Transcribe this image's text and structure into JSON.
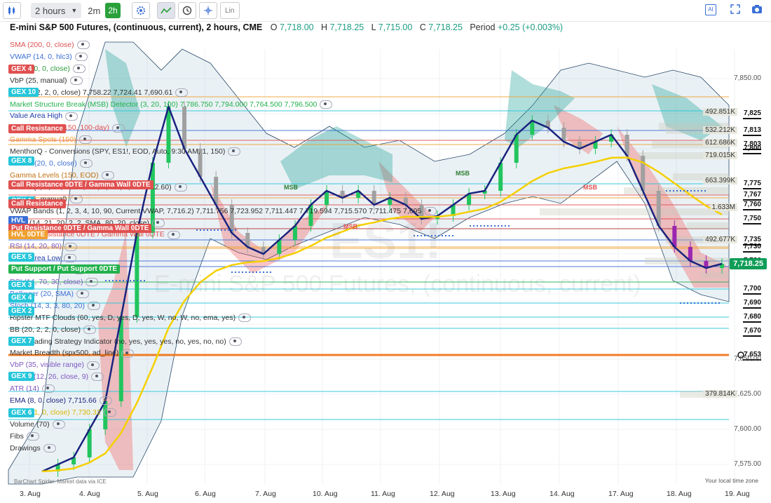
{
  "toolbar": {
    "chart_type_icon": "candlestick-icon",
    "interval_label": "2 hours",
    "quick_intervals": [
      "2m",
      "2h"
    ],
    "tools": [
      "gear-icon",
      "line-chart-icon",
      "clock-icon",
      "crosshair-icon"
    ],
    "log_label": "Lin",
    "right_tools": [
      "ai-icon",
      "fullscreen-icon",
      "camera-icon"
    ]
  },
  "header": {
    "symbol_title": "E-mini S&P 500 Futures, (continuous, current), 2 hours, CME",
    "o_label": "O",
    "o_value": "7,718.00",
    "h_label": "H",
    "h_value": "7,718.25",
    "l_label": "L",
    "l_value": "7,715.00",
    "c_label": "C",
    "c_value": "7,718.25",
    "period_label": "Period",
    "period_value": "+0.25 (+0.003%)"
  },
  "watermark": {
    "symbol": "ES1!",
    "name": "E-mini S&P 500 Futures, (continuous, current)"
  },
  "indicators": [
    {
      "text": "SMA (200, 0, close)",
      "color": "#e05050"
    },
    {
      "text": "VWAP (14, 0, hlc3)",
      "color": "#3a6fd6"
    },
    {
      "text": "EMA (50, 0, close)",
      "color": "#2e9d3e"
    },
    {
      "text": "VbP (25, manual)",
      "color": "#333333"
    },
    {
      "text": "BB (20, 2, 2, 0, close) 7,758.22 7,724.41 7,690.61",
      "color": "#333333"
    },
    {
      "text": "Market Structure Break (MSB) Detector (3, 20, 100) 7,786.750 7,794.000 7,764.500 7,796.500",
      "color": "#22b14c"
    },
    {
      "text": "Value Area High",
      "color": "#1f3fa8"
    },
    {
      "text": "Gamma Levels (150, 100-day)",
      "color": "#e05050"
    },
    {
      "text": "Gamma Spots (150)",
      "color": "#f0a030"
    },
    {
      "text": "MenthorQ - Conversions (SPY, ES1!, EOD, Auto, 9:30 AM, 1, 150)",
      "color": "#333333"
    },
    {
      "text": "VWMA (20, 0, close)",
      "color": "#3a6fd6"
    },
    {
      "text": "Gamma Levels (150, EOD)",
      "color": "#c07010"
    },
    {
      "text": "BL-BC (3, 0, 60, 1, 0.6, 1.3, 3, 0.6, 0, 3.40, 12.60)",
      "color": "#333333"
    },
    {
      "text": "VbP (35, manual)",
      "color": "#333333"
    },
    {
      "text": "VWAP Bands (1, 2, 3, 4, 10, 90, Current VWAP, 7,716.2)  7,711.756 7,723.952 7,711.447 7,719.594 7,715.570 7,711.475 7,695",
      "color": "#333333"
    },
    {
      "text": "URSI (14, 21, 20, 2, 2, SMA, 80, 20, close)",
      "color": "#333333"
    },
    {
      "text": "Gamma Resistance 0DTE / Gamma Wall 0DTE",
      "color": "#e05050"
    },
    {
      "text": "RSI (14, 20, 80)",
      "color": "#7e57c2"
    },
    {
      "text": "Value Area Low",
      "color": "#1f3fa8"
    },
    {
      "text": "SMA (20, 0, close)",
      "color": "#3a6fd6"
    },
    {
      "text": "RSI (14, 70, 30, close)",
      "color": "#7e57c2"
    },
    {
      "text": "Bollinger (20, SMA)",
      "color": "#3a6fd6"
    },
    {
      "text": "Stoch (14, 3, 3, 80, 20)",
      "color": "#3a6fd6"
    },
    {
      "text": "Ripster MTF Clouds (60, yes, D, yes, D, yes, W, no, W, no, ema, yes)",
      "color": "#333333"
    },
    {
      "text": "BB (20, 2, 2, 0, close)",
      "color": "#333333"
    },
    {
      "text": "ORB Trading Strategy Indicator (no, yes, yes, yes, no, yes, no, no)",
      "color": "#333333"
    },
    {
      "text": "Market Breadth (spx500, ad_line)",
      "color": "#333333"
    },
    {
      "text": "VbP (35, visible range)",
      "color": "#7e57c2"
    },
    {
      "text": "MACD (12, 26, close, 9)",
      "color": "#7e57c2"
    },
    {
      "text": "ATR (14)",
      "color": "#7e57c2"
    },
    {
      "text": "EMA (8, 0, close) 7,715.66",
      "color": "#1a237e"
    },
    {
      "text": "EMA (21, 0, close) 7,730.32",
      "color": "#d8b800"
    },
    {
      "text": "Volume (70)",
      "color": "#333333"
    },
    {
      "text": "Fibs",
      "color": "#333333"
    },
    {
      "text": "Drawings",
      "color": "#333333"
    }
  ],
  "tags": [
    {
      "text": "GEX 4",
      "color": "#e05050"
    },
    {
      "text": "GEX 10",
      "color": "#26c6da"
    },
    {
      "text": "Call Resistance",
      "color": "#e05050"
    },
    {
      "text": "GEX 8",
      "color": "#26c6da"
    },
    {
      "text": "Call Resistance 0DTE / Gamma Wall 0DTE",
      "color": "#e05050"
    },
    {
      "text": "GEX 1",
      "color": "#26c6da"
    },
    {
      "text": "Call Resistance",
      "color": "#e05050"
    },
    {
      "text": "HVL",
      "color": "#3a6fd6"
    },
    {
      "text": "Put Resistance 0DTE / Gamma Wall 0DTE",
      "color": "#e05050"
    },
    {
      "text": "HVL 0DTE",
      "color": "#f0a030"
    },
    {
      "text": "GEX 5",
      "color": "#26c6da"
    },
    {
      "text": "Put Support / Put Support 0DTE",
      "color": "#22b14c"
    },
    {
      "text": "GEX 3",
      "color": "#26c6da"
    },
    {
      "text": "GEX 4",
      "color": "#26c6da"
    },
    {
      "text": "GEX 2",
      "color": "#26c6da"
    },
    {
      "text": "GEX 7",
      "color": "#26c6da"
    },
    {
      "text": "GEX 9",
      "color": "#26c6da"
    },
    {
      "text": "GEX 6",
      "color": "#26c6da"
    }
  ],
  "price_axis": {
    "labels": [
      {
        "v": "7,850.00",
        "bold": false
      },
      {
        "v": "7,825",
        "bold": true
      },
      {
        "v": "7,813",
        "bold": true
      },
      {
        "v": "7,803",
        "bold": true
      },
      {
        "v": "7,800",
        "bold": true
      },
      {
        "v": "7,775",
        "bold": true
      },
      {
        "v": "7,767",
        "bold": true
      },
      {
        "v": "7,760",
        "bold": true
      },
      {
        "v": "7,750",
        "bold": true
      },
      {
        "v": "7,735",
        "bold": true
      },
      {
        "v": "7,730",
        "bold": true
      },
      {
        "v": "7,720",
        "bold": true
      },
      {
        "v": "7,700",
        "bold": true
      },
      {
        "v": "7,690",
        "bold": true
      },
      {
        "v": "7,680",
        "bold": true
      },
      {
        "v": "7,670",
        "bold": true
      },
      {
        "v": "7,653",
        "bold": true
      },
      {
        "v": "7,650.00",
        "bold": false
      },
      {
        "v": "7,625.00",
        "bold": false
      },
      {
        "v": "7,600.00",
        "bold": false
      },
      {
        "v": "7,575.00",
        "bold": false
      }
    ],
    "current_price": "7,718.25"
  },
  "volume_labels": [
    "492.851K",
    "532.212K",
    "612.686K",
    "719.015K",
    "663.399K",
    "1.633M",
    "492.677K",
    "379.814K"
  ],
  "chart_labels": [
    "MSB",
    "MSB",
    "MSB",
    "MSB"
  ],
  "date_axis": [
    "3. Aug",
    "4. Aug",
    "5. Aug",
    "6. Aug",
    "7. Aug",
    "10. Aug",
    "11. Aug",
    "12. Aug",
    "13. Aug",
    "14. Aug",
    "17. Aug",
    "18. Aug",
    "19. Aug"
  ],
  "footer": {
    "timezone_note": "Your local time zone",
    "credit": "BarChart Spider. Market data via ICE"
  },
  "colors": {
    "up": "#22c55e",
    "down": "#a0a0a0",
    "accent": "#2aa13b",
    "ema8": "#1a237e",
    "ema21": "#f5d000"
  }
}
